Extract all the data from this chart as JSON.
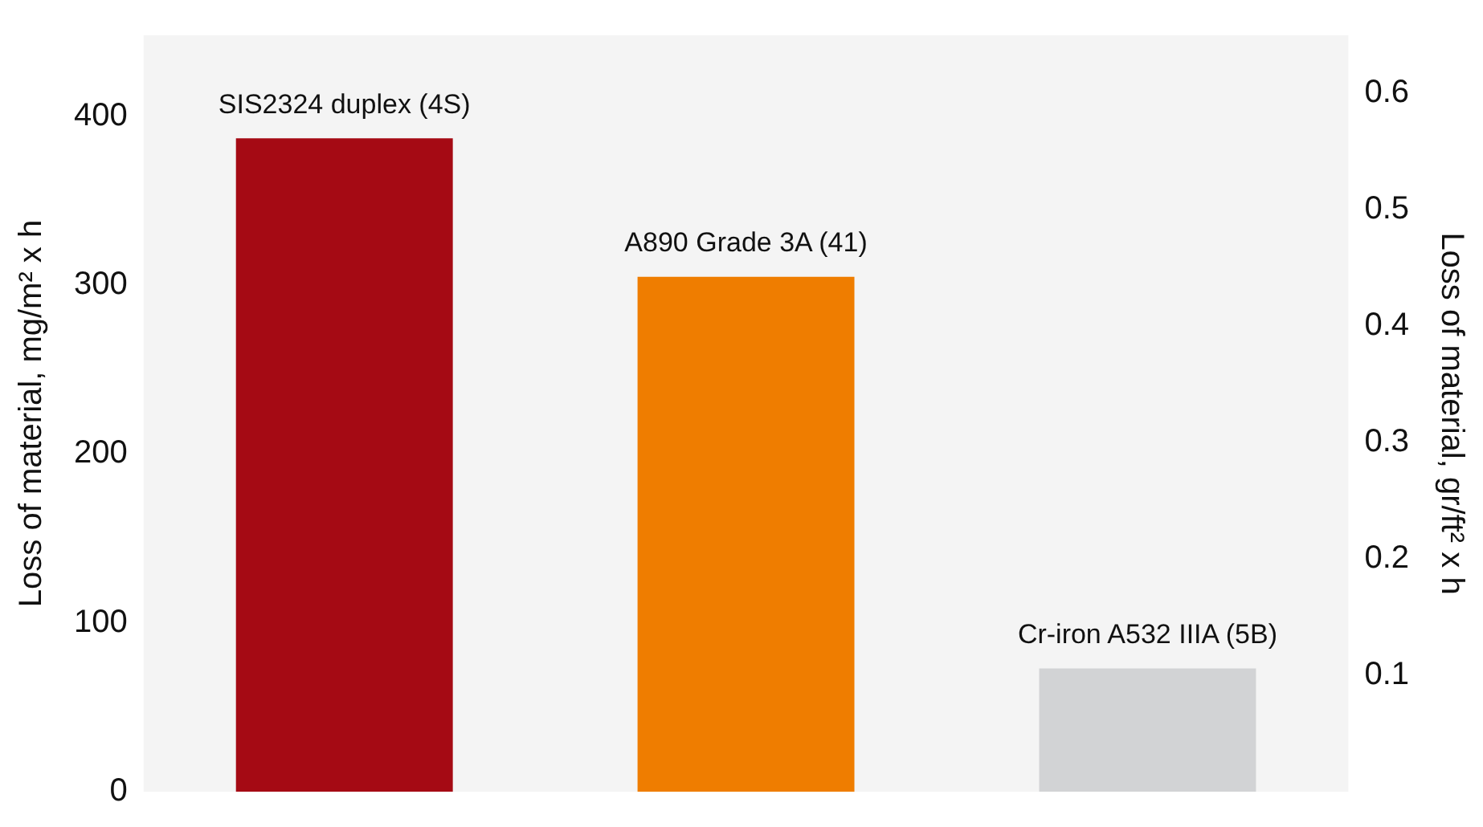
{
  "chart_data": {
    "type": "bar",
    "categories": [
      "SIS2324 duplex (4S)",
      "A890 Grade 3A (41)",
      "Cr-iron A532 IIIA (5B)"
    ],
    "values": [
      387,
      305,
      73
    ],
    "colors": [
      "#a50a14",
      "#ef7d00",
      "#d2d3d5"
    ],
    "ylabel": "Loss of material, mg/m² x h",
    "y2label": "Loss of material, gr/ft² x h",
    "ylim": [
      0,
      448
    ],
    "yticks": [
      0,
      100,
      200,
      300,
      400
    ],
    "y2lim": [
      0,
      0.65
    ],
    "y2ticks": [
      0.1,
      0.2,
      0.3,
      0.4,
      0.5,
      0.6
    ],
    "grid": false,
    "legend": false
  }
}
